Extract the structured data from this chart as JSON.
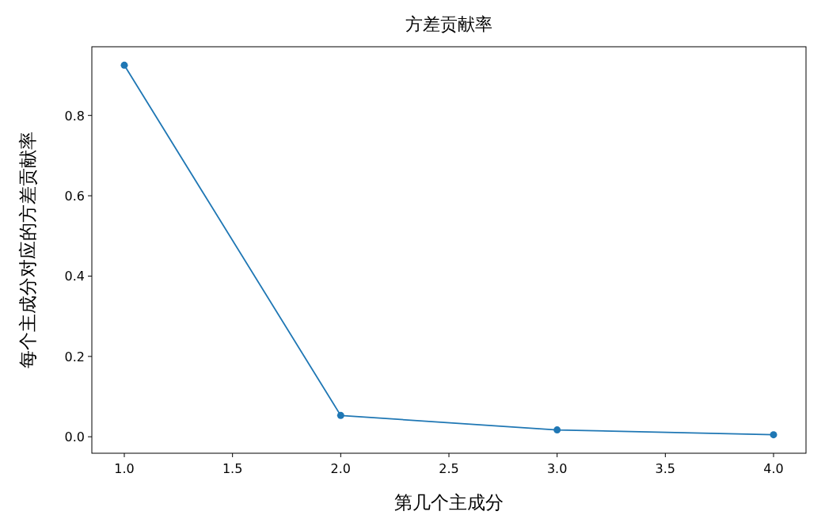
{
  "chart_data": {
    "type": "line",
    "title": "方差贡献率",
    "xlabel": "第几个主成分",
    "ylabel": "每个主成分对应的方差贡献率",
    "x": [
      1,
      2,
      3,
      4
    ],
    "series": [
      {
        "color": "#1f77b4",
        "values": [
          0.925,
          0.053,
          0.017,
          0.005
        ]
      }
    ],
    "xlim": [
      0.85,
      4.15
    ],
    "xticks": [
      {
        "value": 1,
        "label": "1.0"
      },
      1.5,
      {
        "value": 2,
        "label": "2.0"
      },
      2.5,
      {
        "value": 3,
        "label": "3.0"
      },
      3.5,
      {
        "value": 4,
        "label": "4.0"
      }
    ],
    "ylim": [
      -0.041,
      0.971
    ],
    "yticks": [
      {
        "value": 0,
        "label": "0.0"
      },
      0.2,
      0.4,
      0.6,
      0.8
    ],
    "marker": "circle",
    "line_style": "solid",
    "grid": false
  }
}
